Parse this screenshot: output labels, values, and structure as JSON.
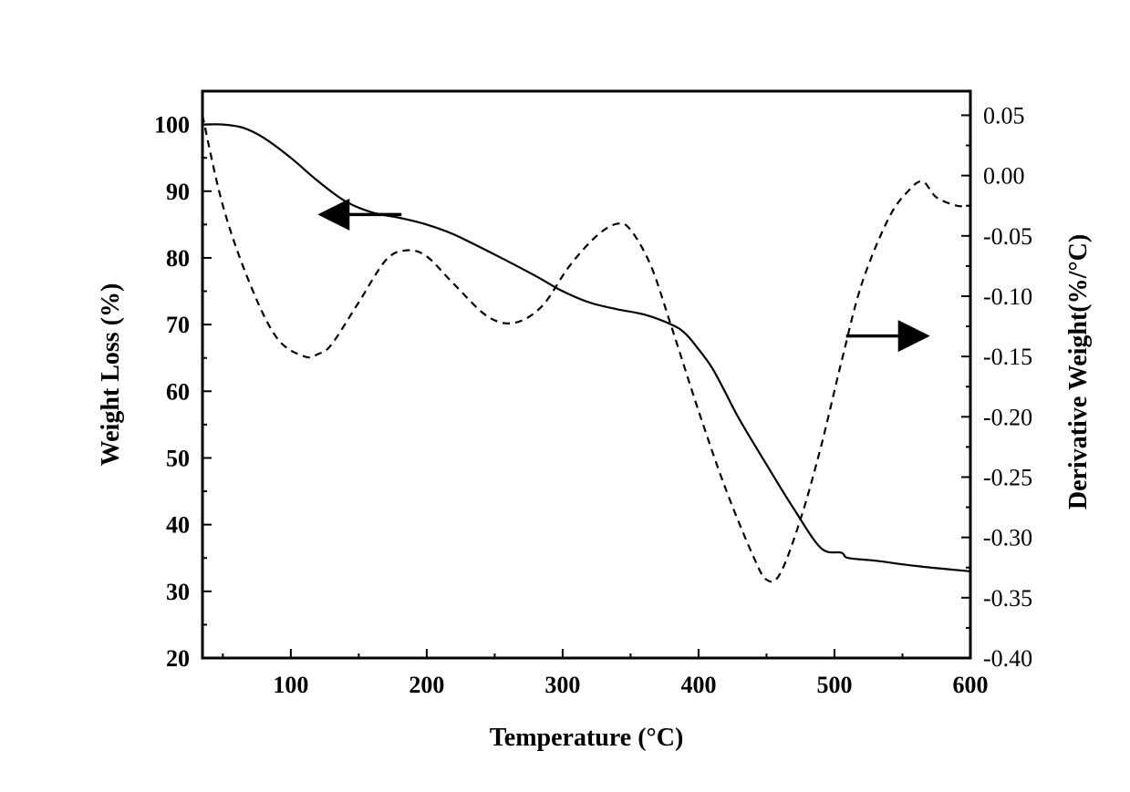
{
  "chart_data": {
    "type": "line",
    "title": "",
    "xlabel": "Temperature (°C)",
    "ylabel_left": "Weight Loss (%)",
    "ylabel_right": "Derivative Weight(%/°C)",
    "xlim": [
      35,
      600
    ],
    "ylim_left": [
      20,
      105
    ],
    "ylim_right": [
      -0.4,
      0.07
    ],
    "x_ticks": [
      100,
      200,
      300,
      400,
      500,
      600
    ],
    "y_ticks_left": [
      20,
      30,
      40,
      50,
      60,
      70,
      80,
      90,
      100
    ],
    "y_ticks_right": [
      -0.4,
      -0.35,
      -0.3,
      -0.25,
      -0.2,
      -0.15,
      -0.1,
      -0.05,
      0.0,
      0.05
    ],
    "x_tick_labels": [
      "100",
      "200",
      "300",
      "400",
      "500",
      "600"
    ],
    "y_tick_labels_left": [
      "20",
      "30",
      "40",
      "50",
      "60",
      "70",
      "80",
      "90",
      "100"
    ],
    "y_tick_labels_right": [
      "-0.40",
      "-0.35",
      "-0.30",
      "-0.25",
      "-0.20",
      "-0.15",
      "-0.10",
      "-0.05",
      "0.00",
      "0.05"
    ],
    "grid": false,
    "series": [
      {
        "name": "Weight Loss",
        "axis": "left",
        "style": "solid",
        "color": "#000000",
        "x": [
          35,
          50,
          65,
          80,
          100,
          120,
          140,
          160,
          180,
          200,
          220,
          250,
          280,
          300,
          320,
          340,
          360,
          380,
          390,
          400,
          410,
          420,
          430,
          450,
          470,
          490,
          505,
          510,
          530,
          560,
          600
        ],
        "y": [
          100,
          100,
          99.5,
          98,
          95,
          91.5,
          88.5,
          86.8,
          86,
          85,
          83.5,
          80.5,
          77.3,
          75,
          73.3,
          72.3,
          71.5,
          70,
          68.7,
          66.3,
          63.5,
          59.7,
          55.8,
          49,
          42.4,
          36.5,
          35.8,
          35,
          34.6,
          33.8,
          33
        ]
      },
      {
        "name": "Derivative Weight",
        "axis": "right",
        "style": "dashed",
        "color": "#000000",
        "x": [
          35,
          50,
          70,
          90,
          110,
          120,
          130,
          150,
          170,
          185,
          200,
          220,
          245,
          265,
          285,
          305,
          325,
          340,
          350,
          365,
          380,
          400,
          420,
          440,
          450,
          460,
          475,
          490,
          505,
          520,
          540,
          555,
          565,
          575,
          590,
          600
        ],
        "y": [
          0.05,
          -0.025,
          -0.09,
          -0.135,
          -0.15,
          -0.148,
          -0.14,
          -0.105,
          -0.07,
          -0.062,
          -0.067,
          -0.09,
          -0.117,
          -0.122,
          -0.108,
          -0.075,
          -0.05,
          -0.04,
          -0.045,
          -0.075,
          -0.125,
          -0.195,
          -0.26,
          -0.315,
          -0.335,
          -0.33,
          -0.285,
          -0.225,
          -0.155,
          -0.09,
          -0.035,
          -0.012,
          -0.005,
          -0.018,
          -0.025,
          -0.025
        ]
      }
    ],
    "annotations": [
      {
        "type": "arrow",
        "direction": "left",
        "points_to_axis": "left",
        "near": {
          "x": 160,
          "y_left": 86.5
        }
      },
      {
        "type": "arrow",
        "direction": "right",
        "points_to_axis": "right",
        "near": {
          "x": 530,
          "y_right": -0.133
        }
      }
    ]
  }
}
